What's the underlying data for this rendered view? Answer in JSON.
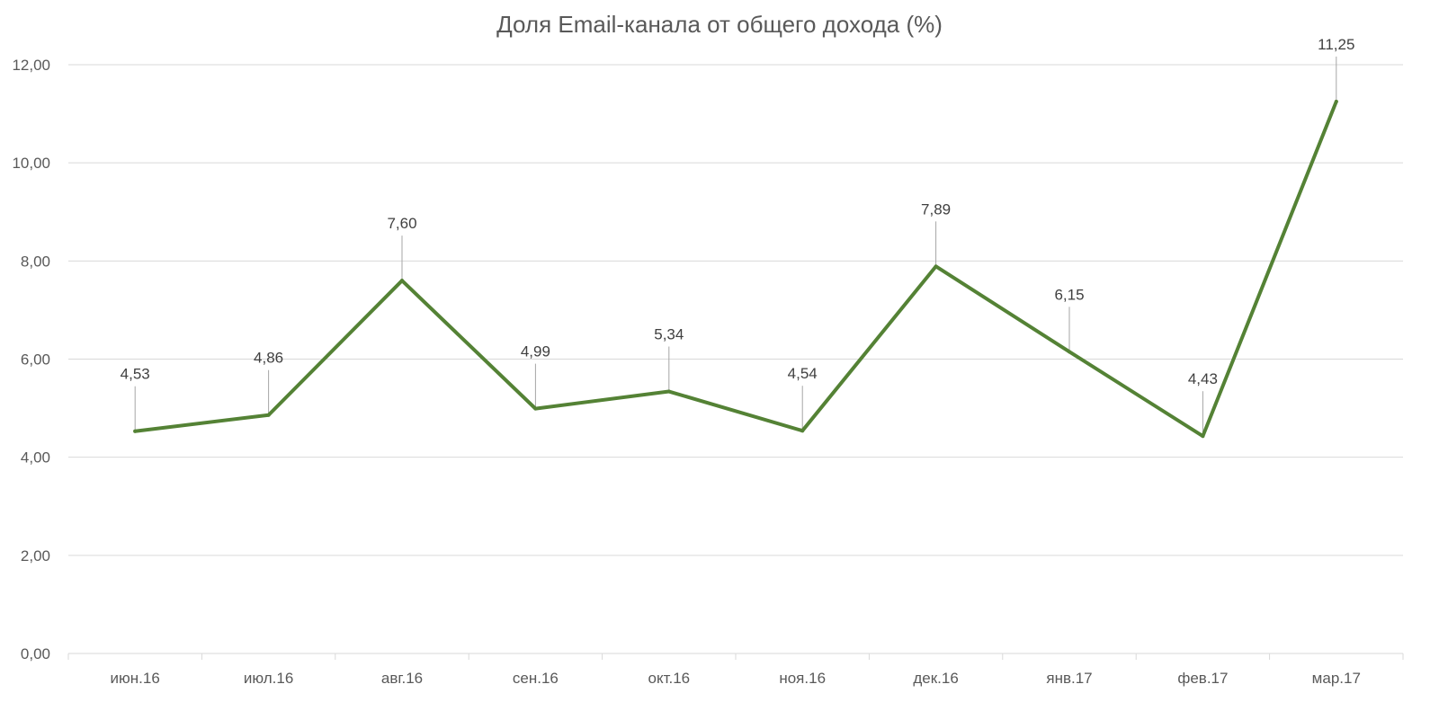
{
  "chart_data": {
    "type": "line",
    "title": "Доля Email-канала от общего дохода (%)",
    "xlabel": "",
    "ylabel": "",
    "categories": [
      "июн.16",
      "июл.16",
      "авг.16",
      "сен.16",
      "окт.16",
      "ноя.16",
      "дек.16",
      "янв.17",
      "фев.17",
      "мар.17"
    ],
    "series": [
      {
        "values": [
          4.53,
          4.86,
          7.6,
          4.99,
          5.34,
          4.54,
          7.89,
          6.15,
          4.43,
          11.25
        ],
        "labels": [
          "4,53",
          "4,86",
          "7,60",
          "4,99",
          "5,34",
          "4,54",
          "7,89",
          "6,15",
          "4,43",
          "11,25"
        ],
        "color": "#548235"
      }
    ],
    "ylim": [
      0,
      12
    ],
    "y_ticks": [
      0,
      2,
      4,
      6,
      8,
      10,
      12
    ],
    "y_tick_labels": [
      "0,00",
      "2,00",
      "4,00",
      "6,00",
      "8,00",
      "10,00",
      "12,00"
    ],
    "grid": true,
    "legend": "none"
  }
}
